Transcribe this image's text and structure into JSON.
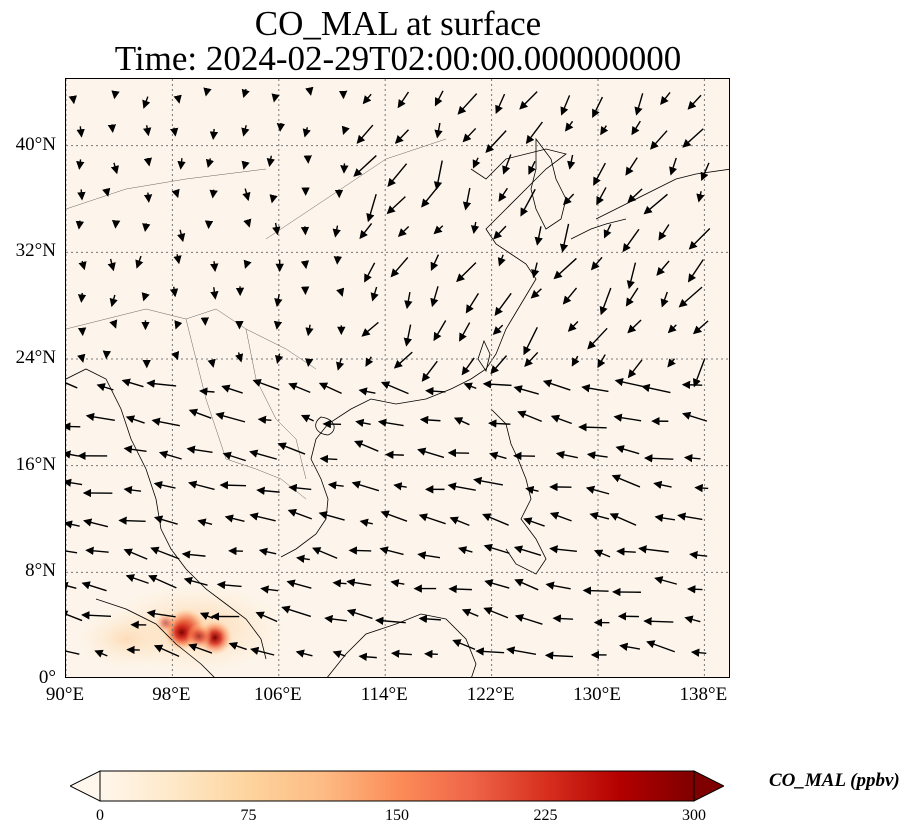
{
  "title": {
    "line1": "CO_MAL at surface",
    "line2": "Time: 2024-02-29T02:00:00.000000000"
  },
  "map": {
    "lon_range": [
      90,
      140
    ],
    "lat_range": [
      0,
      45
    ],
    "lat_ticks": [
      {
        "value": 0,
        "label": "0°"
      },
      {
        "value": 8,
        "label": "8°N"
      },
      {
        "value": 16,
        "label": "16°N"
      },
      {
        "value": 24,
        "label": "24°N"
      },
      {
        "value": 32,
        "label": "32°N"
      },
      {
        "value": 40,
        "label": "40°N"
      }
    ],
    "lon_ticks": [
      {
        "value": 90,
        "label": "90°E"
      },
      {
        "value": 98,
        "label": "98°E"
      },
      {
        "value": 106,
        "label": "106°E"
      },
      {
        "value": 114,
        "label": "114°E"
      },
      {
        "value": 122,
        "label": "122°E"
      },
      {
        "value": 130,
        "label": "130°E"
      },
      {
        "value": 138,
        "label": "138°E"
      }
    ],
    "gridlines": "dotted",
    "background_color": "#fdf5eb",
    "hotspots": [
      {
        "lon": 99.0,
        "lat": 3.8,
        "intensity": 300
      },
      {
        "lon": 98.7,
        "lat": 3.5,
        "intensity": 260
      },
      {
        "lon": 101.2,
        "lat": 3.1,
        "intensity": 250
      },
      {
        "lon": 100.0,
        "lat": 3.2,
        "intensity": 150
      },
      {
        "lon": 97.5,
        "lat": 4.2,
        "intensity": 90
      }
    ]
  },
  "colorbar": {
    "label": "CO_MAL (ppbv)",
    "ticks": [
      "0",
      "75",
      "150",
      "225",
      "300"
    ],
    "range": [
      0,
      300
    ],
    "extend": "both",
    "colormap": "OrRd",
    "colors": [
      "#fff7ec",
      "#fee8c8",
      "#fdd49e",
      "#fdbb84",
      "#fc8d59",
      "#ef6548",
      "#d7301f",
      "#b30000",
      "#7f0000"
    ]
  }
}
